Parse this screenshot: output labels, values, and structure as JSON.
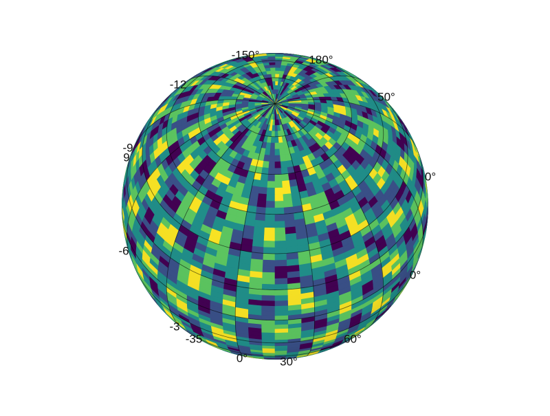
{
  "chart_data": {
    "type": "heatmap",
    "title": "",
    "projection": "orthographic globe",
    "field": "random noise field on a sphere",
    "colormap": [
      "#440154",
      "#3b528b",
      "#21918c",
      "#5ec962",
      "#fde725"
    ],
    "grid": true,
    "graticule": {
      "meridian_step_deg": 30,
      "parallel_step_deg": 15,
      "color": "#000000",
      "opacity": 0.55
    },
    "tick_labels": [
      {
        "id": "lon-m150",
        "text": "-150°"
      },
      {
        "id": "lon-m120",
        "text": "-12"
      },
      {
        "id": "lon-m90",
        "text": "-9"
      },
      {
        "id": "lon-90",
        "text": "9"
      },
      {
        "id": "lon-m60",
        "text": "-6"
      },
      {
        "id": "lon-m30",
        "text": "-3"
      },
      {
        "id": "lon-m35",
        "text": "-35"
      },
      {
        "id": "lon-0",
        "text": "0°"
      },
      {
        "id": "lon-30",
        "text": "30°"
      },
      {
        "id": "lon-60",
        "text": "60°"
      },
      {
        "id": "lon-90r",
        "text": "0°"
      },
      {
        "id": "lon-120",
        "text": "0°"
      },
      {
        "id": "lon-150",
        "text": "50°"
      },
      {
        "id": "lon-180",
        "text": "180°"
      }
    ]
  }
}
